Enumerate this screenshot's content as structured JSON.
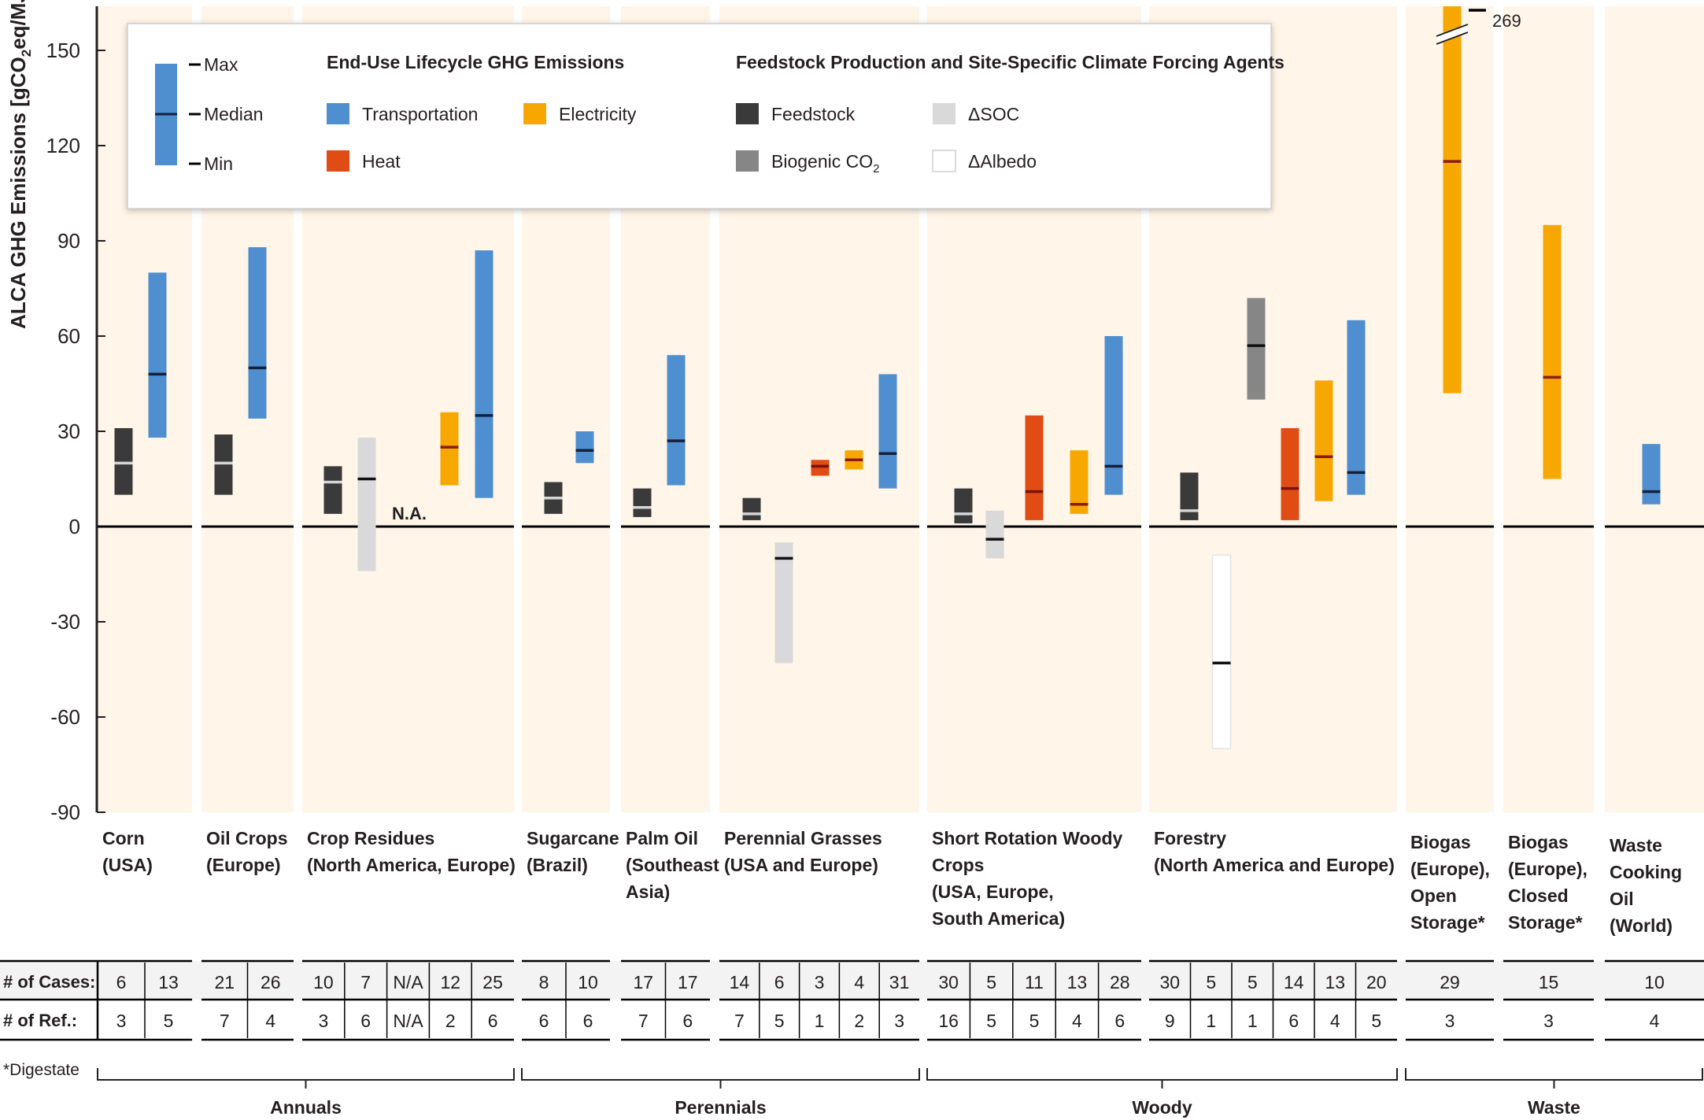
{
  "chart_data": {
    "type": "range-bar",
    "ylabel_parts": [
      "ALCA GHG Emissions [gCO",
      "2",
      "eq/MJ]"
    ],
    "ylim": [
      -90,
      165
    ],
    "yticks": [
      "150",
      "120",
      "90",
      "60",
      "30",
      "0",
      "-30",
      "-60",
      "-90"
    ],
    "colors": {
      "Transportation": "#4f8fcf",
      "Heat": "#e04c14",
      "Electricity": "#f7a800",
      "Feedstock": "#3a3a3a",
      "Biogenic CO2": "#868686",
      "SOC": "#d9d9d9",
      "Albedo": "#ffffff"
    },
    "legend": {
      "key_labels": [
        "Max",
        "Median",
        "Min"
      ],
      "end_use_header": "End-Use Lifecycle GHG Emissions",
      "feedstock_header": "Feedstock Production and Site-Specific Climate Forcing Agents",
      "transportation": "Transportation",
      "heat": "Heat",
      "electricity": "Electricity",
      "feedstock": "Feedstock",
      "biogenic_parts": [
        "Biogenic CO",
        "2"
      ],
      "soc": "ΔSOC",
      "albedo": "ΔAlbedo"
    },
    "categories": [
      {
        "label": [
          "Corn",
          "(USA)"
        ],
        "bars": [
          {
            "type": "Feedstock",
            "min": 10,
            "median": 20,
            "max": 31
          },
          {
            "type": "Transportation",
            "min": 28,
            "median": 48,
            "max": 80
          }
        ],
        "cases": [
          "6",
          "13"
        ],
        "refs": [
          "3",
          "5"
        ]
      },
      {
        "label": [
          "Oil Crops",
          "(Europe)"
        ],
        "bars": [
          {
            "type": "Feedstock",
            "min": 10,
            "median": 20,
            "max": 29
          },
          {
            "type": "Transportation",
            "min": 34,
            "median": 50,
            "max": 88
          }
        ],
        "cases": [
          "21",
          "26"
        ],
        "refs": [
          "7",
          "4"
        ]
      },
      {
        "label": [
          "Crop Residues",
          "(North America, Europe)"
        ],
        "bars": [
          {
            "type": "Feedstock",
            "min": 4,
            "median": 14,
            "max": 19
          },
          {
            "type": "SOC",
            "min": -14,
            "median": 15,
            "max": 28
          },
          {
            "type": "NA",
            "label": "N.A."
          },
          {
            "type": "Electricity",
            "min": 13,
            "median": 25,
            "max": 36
          },
          {
            "type": "Transportation",
            "min": 9,
            "median": 35,
            "max": 87
          }
        ],
        "cases": [
          "10",
          "7",
          "N/A",
          "12",
          "25"
        ],
        "refs": [
          "3",
          "6",
          "N/A",
          "2",
          "6"
        ]
      },
      {
        "label": [
          "Sugarcane",
          "(Brazil)"
        ],
        "bars": [
          {
            "type": "Feedstock",
            "min": 4,
            "median": 9,
            "max": 14
          },
          {
            "type": "Transportation",
            "min": 20,
            "median": 24,
            "max": 30
          }
        ],
        "cases": [
          "8",
          "10"
        ],
        "refs": [
          "6",
          "6"
        ]
      },
      {
        "label": [
          "Palm Oil",
          "(Southeast",
          "Asia)"
        ],
        "bars": [
          {
            "type": "Feedstock",
            "min": 3,
            "median": 6,
            "max": 12
          },
          {
            "type": "Transportation",
            "min": 13,
            "median": 27,
            "max": 54
          }
        ],
        "cases": [
          "17",
          "17"
        ],
        "refs": [
          "7",
          "6"
        ]
      },
      {
        "label": [
          "Perennial Grasses",
          "(USA and Europe)"
        ],
        "bars": [
          {
            "type": "Feedstock",
            "min": 2,
            "median": 4,
            "max": 9
          },
          {
            "type": "SOC",
            "min": -43,
            "median": -10,
            "max": -5
          },
          {
            "type": "Heat",
            "min": 16,
            "median": 19,
            "max": 21
          },
          {
            "type": "Electricity",
            "min": 18,
            "median": 21,
            "max": 24
          },
          {
            "type": "Transportation",
            "min": 12,
            "median": 23,
            "max": 48
          }
        ],
        "cases": [
          "14",
          "6",
          "3",
          "4",
          "31"
        ],
        "refs": [
          "7",
          "5",
          "1",
          "2",
          "3"
        ]
      },
      {
        "label": [
          "Short Rotation Woody",
          "Crops",
          "(USA, Europe,",
          "South America)"
        ],
        "bars": [
          {
            "type": "Feedstock",
            "min": 1,
            "median": 4,
            "max": 12
          },
          {
            "type": "SOC",
            "min": -10,
            "median": -4,
            "max": 5
          },
          {
            "type": "Heat",
            "min": 2,
            "median": 11,
            "max": 35
          },
          {
            "type": "Electricity",
            "min": 4,
            "median": 7,
            "max": 24
          },
          {
            "type": "Transportation",
            "min": 10,
            "median": 19,
            "max": 60
          }
        ],
        "cases": [
          "30",
          "5",
          "11",
          "13",
          "28"
        ],
        "refs": [
          "16",
          "5",
          "5",
          "4",
          "6"
        ]
      },
      {
        "label": [
          "Forestry",
          "(North America and Europe)"
        ],
        "bars": [
          {
            "type": "Feedstock",
            "min": 2,
            "median": 5,
            "max": 17
          },
          {
            "type": "Albedo",
            "min": -70,
            "median": -43,
            "max": -9
          },
          {
            "type": "Biogenic CO2",
            "min": 40,
            "median": 57,
            "max": 72
          },
          {
            "type": "Heat",
            "min": 2,
            "median": 12,
            "max": 31
          },
          {
            "type": "Electricity",
            "min": 8,
            "median": 22,
            "max": 46
          },
          {
            "type": "Transportation",
            "min": 10,
            "median": 17,
            "max": 65
          }
        ],
        "cases": [
          "30",
          "5",
          "5",
          "14",
          "13",
          "20"
        ],
        "refs": [
          "9",
          "1",
          "1",
          "6",
          "4",
          "5"
        ]
      },
      {
        "label": [
          "Biogas",
          "(Europe),",
          "Open",
          "Storage*"
        ],
        "bars": [
          {
            "type": "Electricity",
            "min": 42,
            "median": 115,
            "max": 269,
            "break": true,
            "max_label": "269"
          }
        ],
        "cases": [
          "29"
        ],
        "refs": [
          "3"
        ]
      },
      {
        "label": [
          "Biogas",
          "(Europe),",
          "Closed",
          "Storage*"
        ],
        "bars": [
          {
            "type": "Electricity",
            "min": 15,
            "median": 47,
            "max": 95
          }
        ],
        "cases": [
          "15"
        ],
        "refs": [
          "3"
        ]
      },
      {
        "label": [
          "Waste",
          "Cooking",
          "Oil",
          "(World)"
        ],
        "bars": [
          {
            "type": "Transportation",
            "min": 7,
            "median": 11,
            "max": 26
          }
        ],
        "cases": [
          "10"
        ],
        "refs": [
          "4"
        ]
      }
    ],
    "groups": [
      "Annuals",
      "Perennials",
      "Woody",
      "Waste"
    ],
    "table_rows": [
      "# of Cases:",
      "# of Ref.:"
    ],
    "footnote": "*Digestate"
  }
}
